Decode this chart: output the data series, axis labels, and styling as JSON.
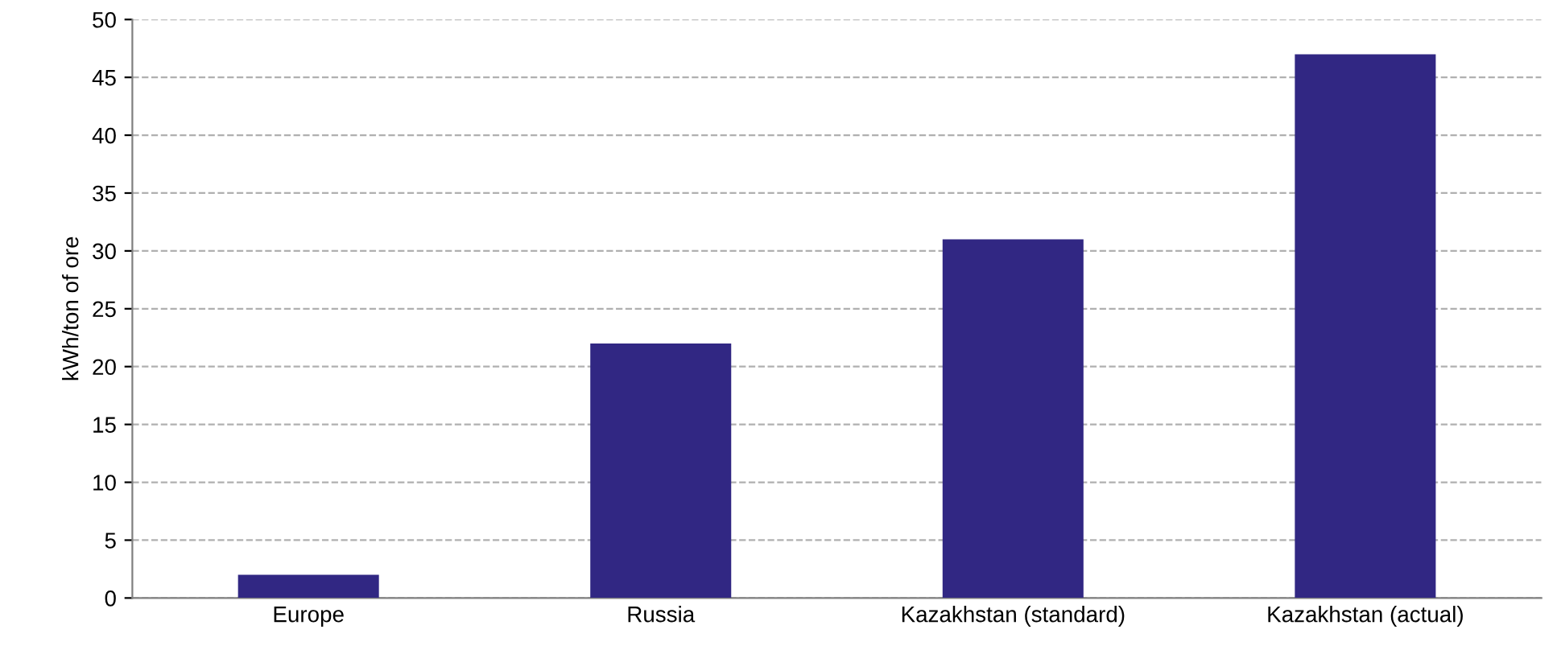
{
  "chart_data": {
    "type": "bar",
    "ylabel": "kWh/ton of ore",
    "categories": [
      "Europe",
      "Russia",
      "Kazakhstan (standard)",
      "Kazakhstan (actual)"
    ],
    "values": [
      2,
      22,
      31,
      47
    ],
    "color": "#312783",
    "ylim": [
      0,
      50
    ],
    "yticks": [
      0,
      5,
      10,
      15,
      20,
      25,
      30,
      35,
      40,
      45,
      50
    ],
    "grid": "y"
  }
}
